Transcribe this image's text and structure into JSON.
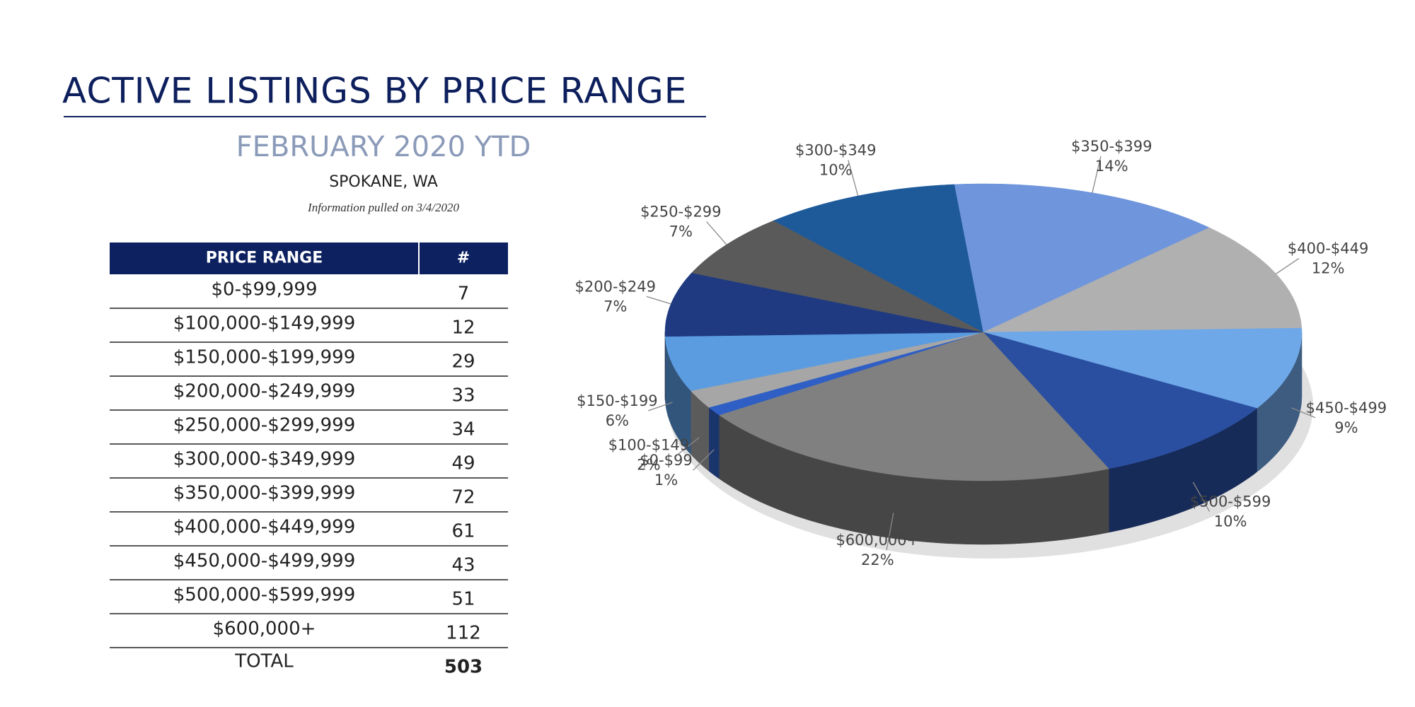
{
  "header": {
    "title": "ACTIVE LISTINGS BY PRICE RANGE",
    "subtitle": "FEBRUARY 2020 YTD",
    "location": "SPOKANE, WA",
    "note": "Information pulled on 3/4/2020"
  },
  "table": {
    "columns": [
      "PRICE RANGE",
      "#"
    ],
    "rows": [
      [
        "$0-$99,999",
        7
      ],
      [
        "$100,000-$149,999",
        12
      ],
      [
        "$150,000-$199,999",
        29
      ],
      [
        "$200,000-$249,999",
        33
      ],
      [
        "$250,000-$299,999",
        34
      ],
      [
        "$300,000-$349,999",
        49
      ],
      [
        "$350,000-$399,999",
        72
      ],
      [
        "$400,000-$449,999",
        61
      ],
      [
        "$450,000-$499,999",
        43
      ],
      [
        "$500,000-$599,999",
        51
      ],
      [
        "$600,000+",
        112
      ]
    ],
    "total": [
      "TOTAL",
      503
    ]
  },
  "chart_data": {
    "type": "pie",
    "categories": [
      "$0-$99",
      "$100-$149",
      "$150-$199",
      "$200-$249",
      "$250-$299",
      "$300-$349",
      "$350-$399",
      "$400-$449",
      "$450-$499",
      "$500-$599",
      "$600,000+"
    ],
    "values": [
      1,
      2,
      6,
      7,
      7,
      10,
      14,
      12,
      9,
      10,
      22
    ],
    "value_labels": [
      "1%",
      "2%",
      "6%",
      "7%",
      "7%",
      "10%",
      "14%",
      "12%",
      "9%",
      "10%",
      "22%"
    ],
    "colors": [
      "#2f5fc4",
      "#a6a6a6",
      "#5b9be0",
      "#1f3a80",
      "#5a5a5a",
      "#1e5a9a",
      "#6f95dc",
      "#b0b0b0",
      "#6fa8e8",
      "#2a4fa0",
      "#808080"
    ]
  }
}
